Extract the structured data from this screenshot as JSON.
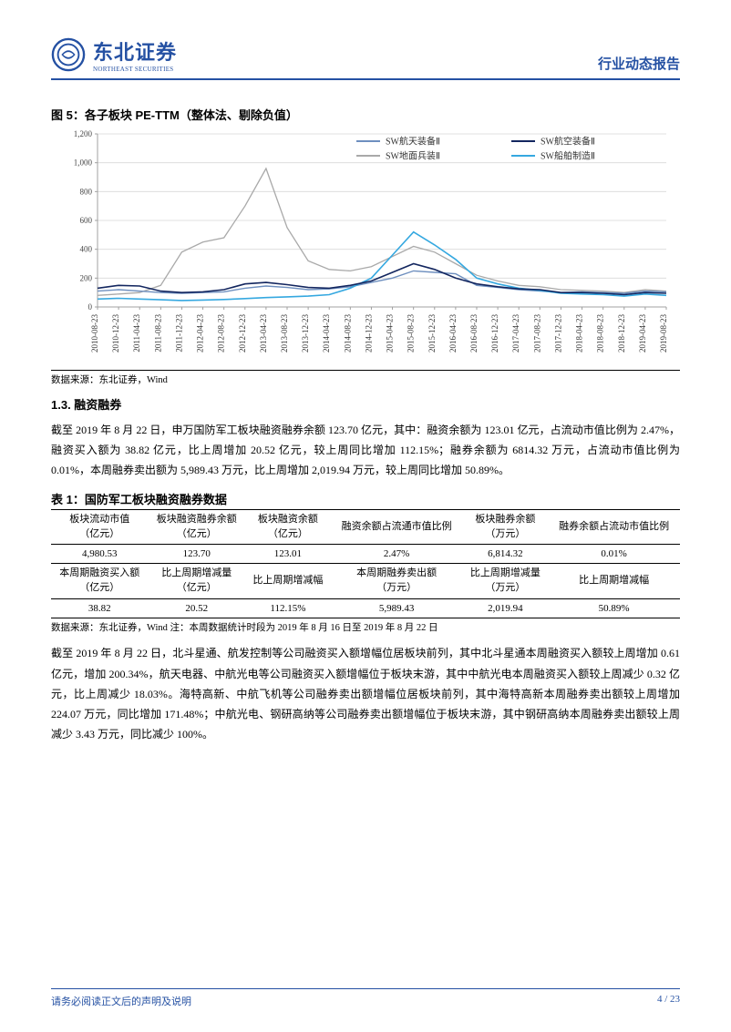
{
  "header": {
    "logo_cn": "东北证券",
    "logo_en": "NORTHEAST SECURITIES",
    "right": "行业动态报告",
    "logo_color": "#2551a3"
  },
  "figure": {
    "title": "图 5：各子板块 PE-TTM（整体法、剔除负值）",
    "source": "数据来源：东北证券，Wind",
    "ylim": [
      0,
      1200
    ],
    "ytick_step": 200,
    "yticks": [
      "0",
      "200",
      "400",
      "600",
      "800",
      "1,000",
      "1,200"
    ],
    "x_labels": [
      "2010-08-23",
      "2010-12-23",
      "2011-04-23",
      "2011-08-23",
      "2011-12-23",
      "2012-04-23",
      "2012-08-23",
      "2012-12-23",
      "2013-04-23",
      "2013-08-23",
      "2013-12-23",
      "2014-04-23",
      "2014-08-23",
      "2014-12-23",
      "2015-04-23",
      "2015-08-23",
      "2015-12-23",
      "2016-04-23",
      "2016-08-23",
      "2016-12-23",
      "2017-04-23",
      "2017-08-23",
      "2017-12-23",
      "2018-04-23",
      "2018-08-23",
      "2018-12-23",
      "2019-04-23",
      "2019-08-23"
    ],
    "legend": [
      {
        "label": "SW航天装备Ⅱ",
        "color": "#6e8fbf"
      },
      {
        "label": "SW航空装备Ⅱ",
        "color": "#13265f"
      },
      {
        "label": "SW地面兵装Ⅱ",
        "color": "#a9a9a9"
      },
      {
        "label": "SW船舶制造Ⅱ",
        "color": "#35a8e0"
      }
    ],
    "series": {
      "航天": {
        "color": "#6e8fbf",
        "width": 1.4,
        "values": [
          110,
          120,
          110,
          100,
          95,
          100,
          105,
          130,
          145,
          135,
          120,
          125,
          140,
          170,
          200,
          250,
          240,
          230,
          150,
          135,
          120,
          110,
          100,
          105,
          100,
          95,
          110,
          105
        ]
      },
      "航空": {
        "color": "#13265f",
        "width": 1.6,
        "values": [
          130,
          150,
          145,
          110,
          100,
          105,
          120,
          160,
          170,
          155,
          135,
          130,
          150,
          180,
          240,
          300,
          260,
          200,
          160,
          140,
          125,
          120,
          100,
          100,
          95,
          85,
          100,
          95
        ]
      },
      "地面": {
        "color": "#a9a9a9",
        "width": 1.3,
        "values": [
          80,
          90,
          100,
          150,
          380,
          450,
          480,
          700,
          960,
          550,
          320,
          260,
          250,
          280,
          350,
          420,
          380,
          300,
          220,
          180,
          150,
          140,
          120,
          115,
          110,
          100,
          120,
          110
        ]
      },
      "船舶": {
        "color": "#35a8e0",
        "width": 1.6,
        "values": [
          55,
          60,
          55,
          50,
          45,
          48,
          52,
          58,
          65,
          70,
          75,
          85,
          130,
          200,
          360,
          520,
          430,
          330,
          200,
          160,
          130,
          115,
          95,
          90,
          85,
          75,
          90,
          80
        ]
      }
    },
    "background_color": "#ffffff",
    "grid_color": "#d9d9d9",
    "axis_color": "#a0a0a0",
    "tick_fontsize": 9,
    "legend_fontsize": 10
  },
  "section": {
    "heading": "1.3.  融资融券",
    "para1": "截至 2019 年 8 月 22 日，申万国防军工板块融资融券余额 123.70 亿元，其中：融资余额为 123.01 亿元，占流动市值比例为 2.47%，融资买入额为 38.82 亿元，比上周增加 20.52 亿元，较上周同比增加 112.15%；融券余额为 6814.32 万元，占流动市值比例为 0.01%，本周融券卖出额为 5,989.43 万元，比上周增加 2,019.94 万元，较上周同比增加 50.89%。"
  },
  "table": {
    "title": "表 1：国防军工板块融资融券数据",
    "header1": [
      "板块流动市值（亿元）",
      "板块融资融券余额（亿元）",
      "板块融资余额（亿元）",
      "融资余额占流通市值比例",
      "板块融券余额（万元）",
      "融券余额占流动市值比例"
    ],
    "row1": [
      "4,980.53",
      "123.70",
      "123.01",
      "2.47%",
      "6,814.32",
      "0.01%"
    ],
    "header2": [
      "本周期融资买入额（亿元）",
      "比上周期增减量（亿元）",
      "比上周期增减幅",
      "本周期融券卖出额（万元）",
      "比上周期增减量（万元）",
      "比上周期增减幅"
    ],
    "row2": [
      "38.82",
      "20.52",
      "112.15%",
      "5,989.43",
      "2,019.94",
      "50.89%"
    ],
    "source": "数据来源：东北证券，Wind 注：本周数据统计时段为 2019 年 8 月 16 日至 2019 年 8 月 22 日"
  },
  "para2": "截至 2019 年 8 月 22 日，北斗星通、航发控制等公司融资买入额增幅位居板块前列，其中北斗星通本周融资买入额较上周增加 0.61 亿元，增加 200.34%，航天电器、中航光电等公司融资买入额增幅位于板块末游，其中中航光电本周融资买入额较上周减少 0.32 亿元，比上周减少 18.03%。海特高新、中航飞机等公司融券卖出额增幅位居板块前列，其中海特高新本周融券卖出额较上周增加 224.07 万元，同比增加 171.48%；中航光电、钢研高纳等公司融券卖出额增幅位于板块末游，其中钢研高纳本周融券卖出额较上周减少 3.43 万元，同比减少 100%。",
  "footer": {
    "left": "请务必阅读正文后的声明及说明",
    "right": "4 / 23"
  }
}
